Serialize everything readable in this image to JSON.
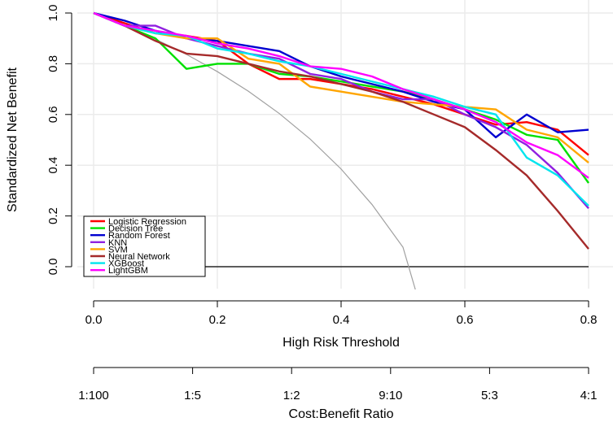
{
  "chart_data": {
    "type": "line",
    "xlabel": "High Risk Threshold",
    "ylabel": "Standardized Net Benefit",
    "xlim": [
      0,
      0.8
    ],
    "ylim": [
      -0.1,
      1.0
    ],
    "grid": true,
    "legend_position": "bottom-left",
    "xticks": [
      "0.0",
      "0.2",
      "0.4",
      "0.6",
      "0.8"
    ],
    "yticks": [
      "0.0",
      "0.2",
      "0.4",
      "0.6",
      "0.8",
      "1.0"
    ],
    "secondary_axis": {
      "label": "Cost:Benefit Ratio",
      "ticks": [
        "1:100",
        "1:5",
        "1:2",
        "9:10",
        "5:3",
        "4:1"
      ]
    },
    "x": [
      0,
      0.05,
      0.1,
      0.15,
      0.2,
      0.25,
      0.3,
      0.35,
      0.4,
      0.45,
      0.5,
      0.55,
      0.6,
      0.65,
      0.7,
      0.75,
      0.8
    ],
    "series": [
      {
        "name": "Logistic Regression",
        "color": "#ff0000",
        "values": [
          1.0,
          0.96,
          0.92,
          0.91,
          0.89,
          0.8,
          0.74,
          0.74,
          0.72,
          0.7,
          0.67,
          0.64,
          0.6,
          0.56,
          0.57,
          0.54,
          0.44
        ]
      },
      {
        "name": "Decision Tree",
        "color": "#00e000",
        "values": [
          1.0,
          0.95,
          0.9,
          0.78,
          0.8,
          0.8,
          0.76,
          0.75,
          0.73,
          0.71,
          0.69,
          0.66,
          0.62,
          0.58,
          0.52,
          0.5,
          0.33
        ]
      },
      {
        "name": "Random Forest",
        "color": "#0000d0",
        "values": [
          1.0,
          0.97,
          0.93,
          0.9,
          0.89,
          0.87,
          0.85,
          0.79,
          0.75,
          0.72,
          0.69,
          0.65,
          0.62,
          0.51,
          0.6,
          0.53,
          0.54
        ]
      },
      {
        "name": "KNN",
        "color": "#9020e0",
        "values": [
          1.0,
          0.95,
          0.95,
          0.9,
          0.87,
          0.84,
          0.82,
          0.76,
          0.74,
          0.69,
          0.66,
          0.66,
          0.6,
          0.55,
          0.48,
          0.37,
          0.23
        ]
      },
      {
        "name": "SVM",
        "color": "#ffa500",
        "values": [
          1.0,
          0.95,
          0.92,
          0.9,
          0.9,
          0.82,
          0.8,
          0.71,
          0.69,
          0.67,
          0.65,
          0.64,
          0.63,
          0.62,
          0.54,
          0.51,
          0.41
        ]
      },
      {
        "name": "Neural Network",
        "color": "#a52a2a",
        "values": [
          1.0,
          0.95,
          0.89,
          0.84,
          0.83,
          0.8,
          0.77,
          0.75,
          0.72,
          0.69,
          0.65,
          0.6,
          0.55,
          0.46,
          0.36,
          0.22,
          0.07
        ]
      },
      {
        "name": "XGBoost",
        "color": "#00e5ee",
        "values": [
          1.0,
          0.95,
          0.92,
          0.91,
          0.86,
          0.84,
          0.81,
          0.79,
          0.76,
          0.73,
          0.7,
          0.67,
          0.63,
          0.6,
          0.43,
          0.36,
          0.24
        ]
      },
      {
        "name": "LightGBM",
        "color": "#ff00ff",
        "values": [
          1.0,
          0.95,
          0.93,
          0.91,
          0.88,
          0.86,
          0.83,
          0.79,
          0.78,
          0.75,
          0.7,
          0.66,
          0.62,
          0.57,
          0.49,
          0.44,
          0.35
        ]
      }
    ],
    "treat_all": {
      "color": "#a0a0a0",
      "x": [
        0,
        0.05,
        0.1,
        0.15,
        0.2,
        0.25,
        0.3,
        0.35,
        0.4,
        0.45,
        0.5,
        0.52
      ],
      "values": [
        1.0,
        0.953,
        0.897,
        0.837,
        0.769,
        0.692,
        0.604,
        0.503,
        0.385,
        0.245,
        0.077,
        -0.1
      ]
    },
    "treat_none": {
      "color": "#000000",
      "value": 0
    }
  }
}
